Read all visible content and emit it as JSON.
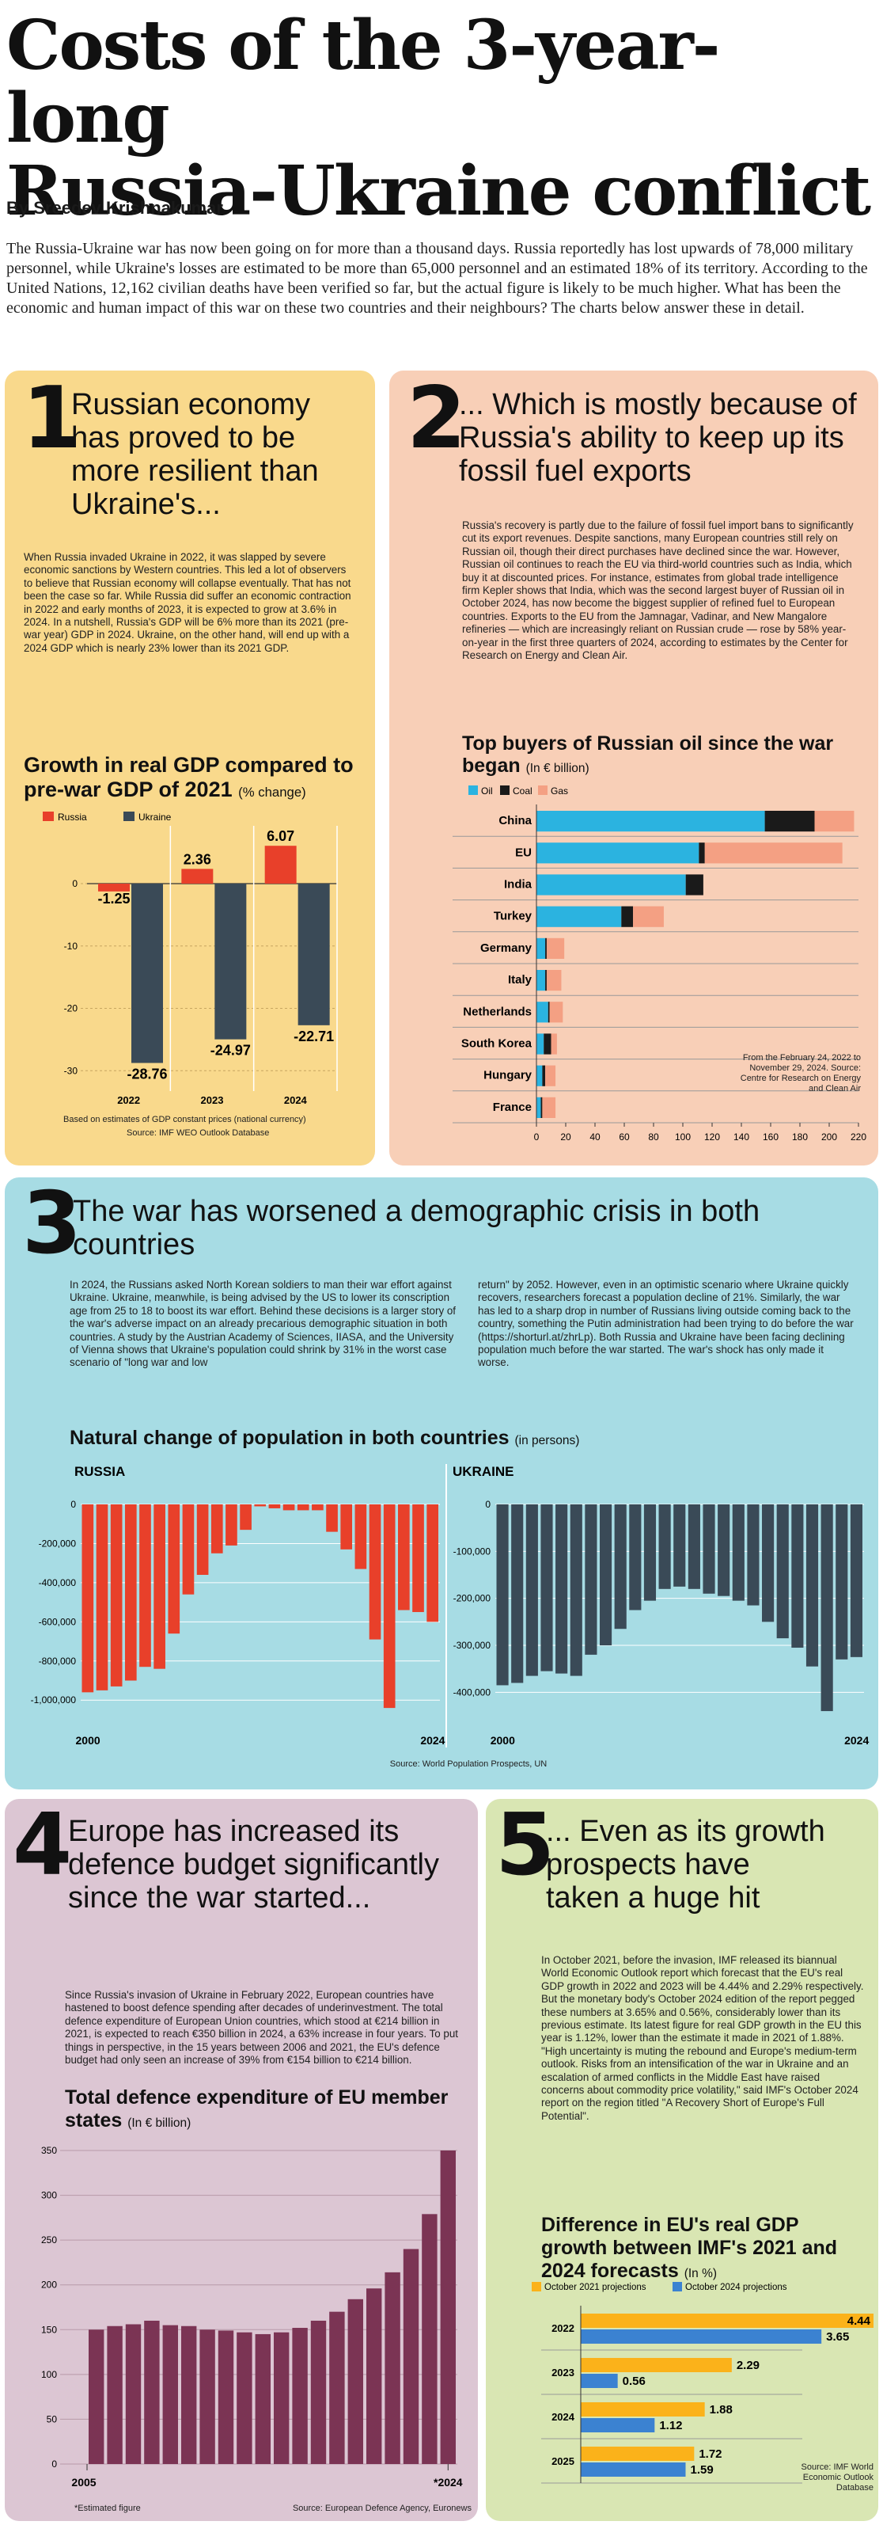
{
  "header": {
    "title_line1": "Costs of the 3-year-long",
    "title_line2": "Russia-Ukraine conflict",
    "byline": "By Sreedev Krishnakumar",
    "intro": "The Russia-Ukraine war has now been going on for more than a thousand days. Russia reportedly has lost upwards of 78,000 military personnel, while Ukraine's losses are estimated to be more than 65,000 personnel and an estimated 18% of its territory. According to the United Nations, 12,162 civilian deaths have been verified so far, but the actual figure is likely to be much higher. What has been the economic and human impact of this war on these two countries and their neighbours? The charts below answer these in detail."
  },
  "colors": {
    "russia_red": "#e8402a",
    "ukraine_slate": "#3a4a57",
    "oil_blue": "#2bb3e0",
    "coal_black": "#1a1a1a",
    "gas_salmon": "#f4a083",
    "orange_2021": "#fbb21a",
    "blue_2024": "#3b82d1",
    "defence_purple": "#7b3454"
  },
  "section1": {
    "number": "1",
    "headline": "Russian economy has proved to be more resilient than Ukraine's...",
    "body": "When Russia invaded Ukraine in 2022, it was slapped by severe economic sanctions by Western countries. This led a lot of observers to believe that Russian economy will collapse eventually. That has not been the case so far. While Russia did suffer an economic contraction in 2022 and early months of 2023, it is expected to grow at 3.6% in 2024. In a nutshell, Russia's GDP will be 6% more than its 2021 (pre-war year) GDP in 2024. Ukraine, on the other hand, will end up with a 2024 GDP which is nearly 23% lower than its 2021 GDP.",
    "chart_title": "Growth in real GDP compared to pre-war GDP of 2021",
    "chart_unit": "(% change)",
    "note": "Based on estimates of GDP constant prices (national currency)",
    "source": "Source: IMF WEO Outlook Database"
  },
  "section2": {
    "number": "2",
    "headline": "... Which is mostly because of Russia's ability to keep up its fossil fuel exports",
    "body": "Russia's recovery is partly due to the failure of fossil fuel import bans to significantly cut its export revenues. Despite sanctions, many European countries still rely on Russian oil, though their direct purchases have declined since the war. However, Russian oil continues to reach the EU via third-world countries such as India, which buy it at discounted prices. For instance, estimates from global trade intelligence firm Kepler shows that India, which was the second largest buyer of Russian oil in October 2024, has now become the biggest supplier of refined fuel to European countries. Exports to the EU from the Jamnagar, Vadinar, and New Mangalore refineries — which are increasingly reliant on Russian crude — rose by 58% year-on-year in the first three quarters of 2024, according to estimates by the Center for Research on Energy and Clean Air.",
    "chart_title": "Top buyers of Russian oil since the war began",
    "chart_unit": "(In € billion)",
    "note": "From the February 24, 2022 to November 29, 2024. Source: Centre for Research on Energy and Clean Air"
  },
  "section3": {
    "number": "3",
    "headline": "The war has worsened a demographic crisis in both countries",
    "body_left": "In 2024, the Russians asked North Korean soldiers to man their war effort against Ukraine. Ukraine, meanwhile, is being advised by the US to lower its conscription age from 25 to 18 to boost its war effort. Behind these decisions is a larger story of the war's adverse impact on an already precarious demographic situation in both countries. A study by the Austrian Academy of Sciences, IIASA, and the University of Vienna shows that Ukraine's population could shrink by 31% in the worst case scenario of \"long war and low",
    "body_right": "return\" by 2052. However, even in an optimistic scenario where Ukraine quickly recovers, researchers forecast a population decline of 21%. Similarly, the war has led to a sharp drop in number of Russians living outside coming back to the country, something the Putin administration had been trying to do before the war (https://shorturl.at/zhrLp). Both Russia and Ukraine have been facing declining population much before the war started. The war's shock has only made it worse.",
    "chart_title": "Natural change of population in both countries",
    "chart_unit": "(in persons)",
    "source": "Source: World Population Prospects, UN"
  },
  "section4": {
    "number": "4",
    "headline": "Europe has increased its defence budget significantly since the war started...",
    "body": "Since Russia's invasion of Ukraine in February 2022, European countries have hastened to boost defence spending after decades of underinvestment. The total defence expenditure of European Union countries, which stood at €214 billion in 2021, is expected to reach €350 billion in 2024, a 63% increase in four years. To put things in perspective, in the 15 years between 2006 and 2021, the EU's defence budget had only seen an increase of 39% from €154 billion to €214 billion.",
    "chart_title": "Total defence expenditure of EU member states",
    "chart_unit": "(In € billion)",
    "footnote": "*Estimated figure",
    "source": "Source: European Defence Agency, Euronews"
  },
  "section5": {
    "number": "5",
    "headline": "... Even as its growth prospects have taken a huge hit",
    "body": "In October 2021, before the invasion, IMF released its biannual World Economic Outlook report which forecast that the EU's real GDP growth in 2022 and 2023 will be 4.44% and 2.29% respectively. But the monetary body's October 2024 edition of the report pegged these numbers at 3.65% and 0.56%, considerably lower than its previous estimate. Its latest figure for real GDP growth in the EU this year is 1.12%, lower than the estimate it made in 2021 of 1.88%. \"High uncertainty is muting the rebound and Europe's medium-term outlook. Risks from an intensification of the war in Ukraine and an escalation of armed conflicts in the Middle East have raised concerns about commodity price volatility,\" said IMF's October 2024 report on the region titled \"A Recovery Short of Europe's Full Potential\".",
    "chart_title": "Difference in EU's real GDP growth between IMF's 2021 and 2024 forecasts",
    "chart_unit": "(In %)",
    "source": "Source: IMF World Economic Outlook Database"
  },
  "chart_data": [
    {
      "type": "bar",
      "id": "gdp-growth",
      "categories": [
        "2022",
        "2023",
        "2024"
      ],
      "series": [
        {
          "name": "Russia",
          "values": [
            -1.25,
            2.36,
            6.07
          ]
        },
        {
          "name": "Ukraine",
          "values": [
            -28.76,
            -24.97,
            -22.71
          ]
        }
      ],
      "value_labels": {
        "Russia": [
          "-1.25",
          "2.36",
          "6.07"
        ],
        "Ukraine": [
          "-28.76",
          "-24.97",
          "-22.71"
        ]
      },
      "yticks": [
        "0",
        "-10",
        "-20",
        "-30"
      ],
      "ylim": [
        -32,
        8
      ],
      "legend": "top-left"
    },
    {
      "type": "bar",
      "id": "oil-buyers",
      "orientation": "horizontal",
      "stacked": true,
      "categories": [
        "China",
        "EU",
        "India",
        "Turkey",
        "Germany",
        "Italy",
        "Netherlands",
        "South Korea",
        "Hungary",
        "France"
      ],
      "series": [
        {
          "name": "Oil",
          "values": [
            156,
            111,
            102,
            58,
            6,
            6,
            8,
            5,
            4,
            3
          ]
        },
        {
          "name": "Coal",
          "values": [
            34,
            4,
            12,
            8,
            1,
            1,
            1,
            5,
            2,
            1
          ]
        },
        {
          "name": "Gas",
          "values": [
            27,
            94,
            0,
            21,
            12,
            10,
            9,
            4,
            7,
            9
          ]
        }
      ],
      "xticks": [
        "0",
        "20",
        "40",
        "60",
        "80",
        "100",
        "120",
        "140",
        "160",
        "180",
        "200",
        "220"
      ],
      "xlim": [
        0,
        220
      ],
      "legend": "top"
    },
    {
      "type": "bar",
      "id": "russia-natural-change",
      "title": "RUSSIA",
      "xlabels": [
        "2000",
        "2024"
      ],
      "years": [
        2000,
        2001,
        2002,
        2003,
        2004,
        2005,
        2006,
        2007,
        2008,
        2009,
        2010,
        2011,
        2012,
        2013,
        2014,
        2015,
        2016,
        2017,
        2018,
        2019,
        2020,
        2021,
        2022,
        2023,
        2024
      ],
      "values": [
        -960000,
        -950000,
        -930000,
        -900000,
        -830000,
        -840000,
        -660000,
        -460000,
        -360000,
        -250000,
        -210000,
        -130000,
        -10000,
        -20000,
        -30000,
        -30000,
        -30000,
        -140000,
        -230000,
        -330000,
        -690000,
        -1040000,
        -540000,
        -550000,
        -600000
      ],
      "yticks": [
        "0",
        "-200,000",
        "-400,000",
        "-600,000",
        "-800,000",
        "-1,000,000"
      ],
      "ylim": [
        -1080000,
        0
      ]
    },
    {
      "type": "bar",
      "id": "ukraine-natural-change",
      "title": "UKRAINE",
      "xlabels": [
        "2000",
        "2024"
      ],
      "years": [
        2000,
        2001,
        2002,
        2003,
        2004,
        2005,
        2006,
        2007,
        2008,
        2009,
        2010,
        2011,
        2012,
        2013,
        2014,
        2015,
        2016,
        2017,
        2018,
        2019,
        2020,
        2021,
        2022,
        2023,
        2024
      ],
      "values": [
        -385000,
        -380000,
        -365000,
        -355000,
        -360000,
        -365000,
        -320000,
        -300000,
        -265000,
        -225000,
        -205000,
        -180000,
        -175000,
        -180000,
        -190000,
        -195000,
        -205000,
        -215000,
        -250000,
        -285000,
        -305000,
        -345000,
        -440000,
        -330000,
        -325000
      ],
      "yticks": [
        "0",
        "-100,000",
        "-200,000",
        "-300,000",
        "-400,000"
      ],
      "ylim": [
        -450000,
        0
      ]
    },
    {
      "type": "bar",
      "id": "eu-defence",
      "categories": [
        "2005",
        "2006",
        "2007",
        "2008",
        "2009",
        "2010",
        "2011",
        "2012",
        "2013",
        "2014",
        "2015",
        "2016",
        "2017",
        "2018",
        "2019",
        "2020",
        "2021",
        "2022",
        "2023",
        "2024"
      ],
      "values": [
        150,
        154,
        156,
        160,
        155,
        154,
        150,
        149,
        147,
        145,
        147,
        152,
        160,
        170,
        184,
        196,
        214,
        240,
        279,
        350
      ],
      "xlabels": [
        "2005",
        "*2024"
      ],
      "yticks": [
        "0",
        "50",
        "100",
        "150",
        "200",
        "250",
        "300",
        "350"
      ],
      "ylim": [
        0,
        350
      ]
    },
    {
      "type": "bar",
      "id": "eu-gdp-forecasts",
      "orientation": "horizontal",
      "categories": [
        "2022",
        "2023",
        "2024",
        "2025"
      ],
      "series": [
        {
          "name": "October 2021 projections",
          "values": [
            4.44,
            2.29,
            1.88,
            1.72
          ]
        },
        {
          "name": "October 2024 projections",
          "values": [
            3.65,
            0.56,
            1.12,
            1.59
          ]
        }
      ],
      "value_labels": {
        "October 2021 projections": [
          "4.44",
          "2.29",
          "1.88",
          "1.72"
        ],
        "October 2024 projections": [
          "3.65",
          "0.56",
          "1.12",
          "1.59"
        ]
      },
      "xlim": [
        0,
        4.44
      ],
      "legend": "top"
    }
  ]
}
